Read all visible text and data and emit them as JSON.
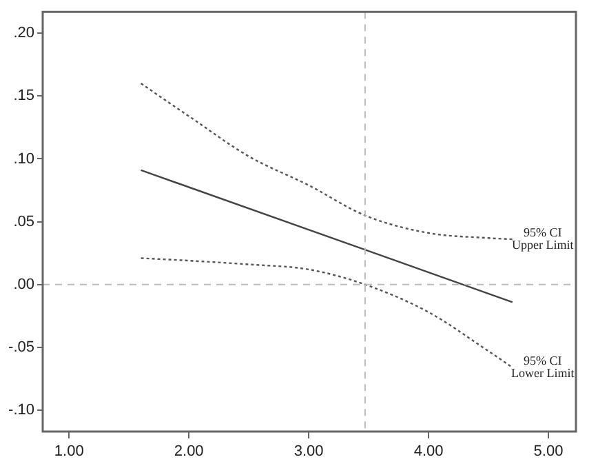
{
  "chart_data": {
    "type": "line",
    "x": [
      1.6,
      2.0,
      2.5,
      3.0,
      3.47,
      4.0,
      4.5,
      4.7
    ],
    "series": [
      {
        "color": "#444444",
        "line_style": "solid",
        "x": [
          1.6,
          4.7
        ],
        "values": [
          0.091,
          -0.014
        ]
      },
      {
        "color": "#555555",
        "line_style": "dotted",
        "values": [
          0.16,
          0.134,
          0.102,
          0.079,
          0.055,
          0.041,
          0.037,
          0.036
        ]
      },
      {
        "color": "#555555",
        "line_style": "dotted",
        "values": [
          0.021,
          0.019,
          0.016,
          0.012,
          0.0,
          -0.022,
          -0.053,
          -0.066
        ]
      }
    ],
    "xlim": [
      0.78,
      5.23
    ],
    "ylim": [
      -0.117,
      0.217
    ],
    "xticks": [
      {
        "value": 1,
        "label": "1.00"
      },
      {
        "value": 2,
        "label": "2.00"
      },
      {
        "value": 3,
        "label": "3.00"
      },
      {
        "value": 4,
        "label": "4.00"
      },
      {
        "value": 5,
        "label": "5.00"
      }
    ],
    "yticks": [
      {
        "value": -0.1,
        "label": "-.10"
      },
      {
        "value": -0.05,
        "label": "-.05"
      },
      {
        "value": 0,
        "label": ".00"
      },
      {
        "value": 0.05,
        "label": ".05"
      },
      {
        "value": 0.1,
        "label": ".10"
      },
      {
        "value": 0.15,
        "label": ".15"
      },
      {
        "value": 0.2,
        "label": ".20"
      }
    ],
    "ref_lines": [
      {
        "axis": "x",
        "value": 3.47,
        "color": "#bbbbbb",
        "line_style": "dashed"
      },
      {
        "axis": "y",
        "value": 0,
        "color": "#bbbbbb",
        "line_style": "dashed"
      }
    ],
    "annotations": [
      {
        "text": "95% CI\nUpper Limit",
        "x": 4.7,
        "y": 0.036
      },
      {
        "text": "95% CI\nLower Limit",
        "x": 4.7,
        "y": -0.066
      }
    ],
    "grid": false,
    "legend": false,
    "marker": "none"
  }
}
